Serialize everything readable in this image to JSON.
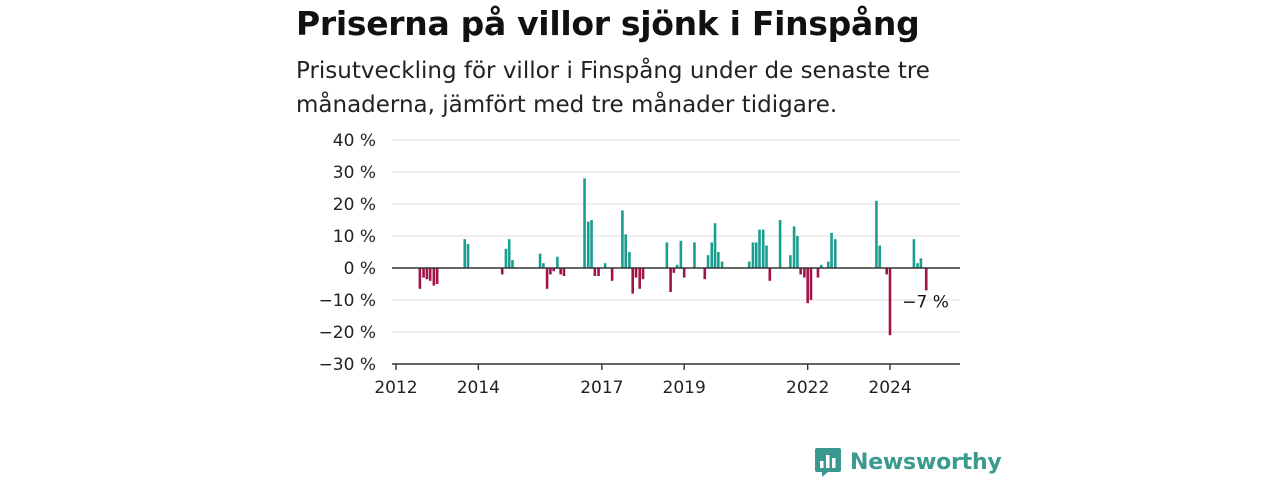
{
  "chart_data": {
    "type": "bar",
    "title": "Priserna på villor sjönk i Finspång",
    "subtitle": "Prisutveckling för villor i Finspång under de senaste tre månaderna, jämfört med tre månader tidigare.",
    "unit": "%",
    "ylim": [
      -30,
      40
    ],
    "yticks": [
      {
        "value": 40,
        "label": "40 %"
      },
      {
        "value": 30,
        "label": "30 %"
      },
      {
        "value": 20,
        "label": "20 %"
      },
      {
        "value": 10,
        "label": "10 %"
      },
      {
        "value": 0,
        "label": "0 %"
      },
      {
        "value": -10,
        "label": "−10 %"
      },
      {
        "value": -20,
        "label": "−20 %"
      },
      {
        "value": -30,
        "label": "−30 %"
      }
    ],
    "xlim": [
      2012.0,
      2025.7
    ],
    "xticks": [
      {
        "value": 2012,
        "label": "2012"
      },
      {
        "value": 2014,
        "label": "2014"
      },
      {
        "value": 2017,
        "label": "2017"
      },
      {
        "value": 2019,
        "label": "2019"
      },
      {
        "value": 2022,
        "label": "2022"
      },
      {
        "value": 2024,
        "label": "2024"
      }
    ],
    "grid": true,
    "positive_color": "#1a9e8f",
    "negative_color": "#a3124a",
    "annotation": {
      "label": "−7 %",
      "x": 2024.88
    },
    "points": [
      {
        "x": 2012.58,
        "y": -6.5
      },
      {
        "x": 2012.67,
        "y": -3
      },
      {
        "x": 2012.75,
        "y": -3.5
      },
      {
        "x": 2012.83,
        "y": -4
      },
      {
        "x": 2012.92,
        "y": -5.5
      },
      {
        "x": 2013.0,
        "y": -5
      },
      {
        "x": 2013.67,
        "y": 9
      },
      {
        "x": 2013.75,
        "y": 7.5
      },
      {
        "x": 2014.58,
        "y": -2
      },
      {
        "x": 2014.67,
        "y": 6
      },
      {
        "x": 2014.75,
        "y": 9
      },
      {
        "x": 2014.83,
        "y": 2.5
      },
      {
        "x": 2015.5,
        "y": 4.5
      },
      {
        "x": 2015.58,
        "y": 1.5
      },
      {
        "x": 2015.67,
        "y": -6.5
      },
      {
        "x": 2015.75,
        "y": -2
      },
      {
        "x": 2015.83,
        "y": -1
      },
      {
        "x": 2015.92,
        "y": 3.5
      },
      {
        "x": 2016.0,
        "y": -2
      },
      {
        "x": 2016.08,
        "y": -2.5
      },
      {
        "x": 2016.58,
        "y": 28
      },
      {
        "x": 2016.67,
        "y": 14.5
      },
      {
        "x": 2016.75,
        "y": 15
      },
      {
        "x": 2016.83,
        "y": -2.5
      },
      {
        "x": 2016.92,
        "y": -2.5
      },
      {
        "x": 2017.08,
        "y": 1.5
      },
      {
        "x": 2017.25,
        "y": -4
      },
      {
        "x": 2017.5,
        "y": 18
      },
      {
        "x": 2017.58,
        "y": 10.5
      },
      {
        "x": 2017.67,
        "y": 5
      },
      {
        "x": 2017.75,
        "y": -8
      },
      {
        "x": 2017.83,
        "y": -3
      },
      {
        "x": 2017.92,
        "y": -6.5
      },
      {
        "x": 2018.0,
        "y": -3.5
      },
      {
        "x": 2018.58,
        "y": 8
      },
      {
        "x": 2018.67,
        "y": -7.5
      },
      {
        "x": 2018.75,
        "y": -1.5
      },
      {
        "x": 2018.83,
        "y": 1
      },
      {
        "x": 2018.92,
        "y": 8.5
      },
      {
        "x": 2019.0,
        "y": -3
      },
      {
        "x": 2019.25,
        "y": 8
      },
      {
        "x": 2019.5,
        "y": -3.5
      },
      {
        "x": 2019.58,
        "y": 4
      },
      {
        "x": 2019.67,
        "y": 8
      },
      {
        "x": 2019.75,
        "y": 14
      },
      {
        "x": 2019.83,
        "y": 5
      },
      {
        "x": 2019.92,
        "y": 2
      },
      {
        "x": 2020.58,
        "y": 2
      },
      {
        "x": 2020.67,
        "y": 8
      },
      {
        "x": 2020.75,
        "y": 8
      },
      {
        "x": 2020.83,
        "y": 12
      },
      {
        "x": 2020.92,
        "y": 12
      },
      {
        "x": 2021.0,
        "y": 7
      },
      {
        "x": 2021.08,
        "y": -4
      },
      {
        "x": 2021.33,
        "y": 15
      },
      {
        "x": 2021.58,
        "y": 4
      },
      {
        "x": 2021.67,
        "y": 13
      },
      {
        "x": 2021.75,
        "y": 10
      },
      {
        "x": 2021.83,
        "y": -2
      },
      {
        "x": 2021.92,
        "y": -3
      },
      {
        "x": 2022.0,
        "y": -11
      },
      {
        "x": 2022.08,
        "y": -10
      },
      {
        "x": 2022.25,
        "y": -3
      },
      {
        "x": 2022.33,
        "y": 1
      },
      {
        "x": 2022.5,
        "y": 2
      },
      {
        "x": 2022.58,
        "y": 11
      },
      {
        "x": 2022.67,
        "y": 9
      },
      {
        "x": 2023.67,
        "y": 21
      },
      {
        "x": 2023.75,
        "y": 7
      },
      {
        "x": 2023.92,
        "y": -2
      },
      {
        "x": 2024.0,
        "y": -21
      },
      {
        "x": 2024.58,
        "y": 9
      },
      {
        "x": 2024.67,
        "y": 1.5
      },
      {
        "x": 2024.75,
        "y": 3
      },
      {
        "x": 2024.88,
        "y": -7
      }
    ]
  },
  "brand": {
    "name": "Newsworthy",
    "icon": "newsworthy-logo-icon",
    "color": "#3a9a90"
  }
}
